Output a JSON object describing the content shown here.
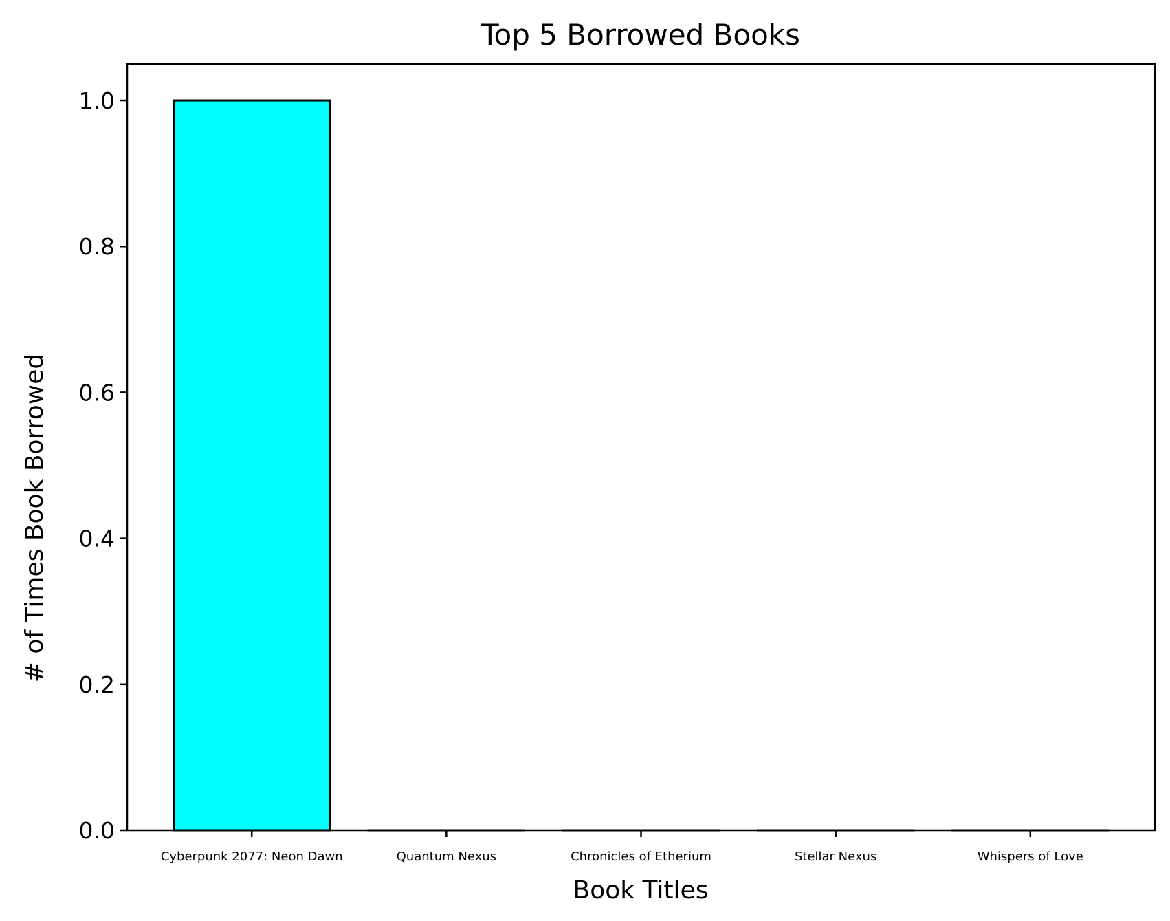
{
  "chart_data": {
    "type": "bar",
    "title": "Top 5 Borrowed Books",
    "xlabel": "Book Titles",
    "ylabel": "# of Times Book Borrowed",
    "categories": [
      "Cyberpunk 2077: Neon Dawn",
      "Quantum Nexus",
      "Chronicles of Etherium",
      "Stellar Nexus",
      "Whispers of Love"
    ],
    "values": [
      1,
      0,
      0,
      0,
      0
    ],
    "ylim": [
      0,
      1.05
    ],
    "yticks": [
      0.0,
      0.2,
      0.4,
      0.6,
      0.8,
      1.0
    ],
    "ytick_labels": [
      "0.0",
      "0.2",
      "0.4",
      "0.6",
      "0.8",
      "1.0"
    ],
    "bar_color": "#00ffff",
    "edge_color": "#000000",
    "grid": false,
    "legend": "none"
  }
}
